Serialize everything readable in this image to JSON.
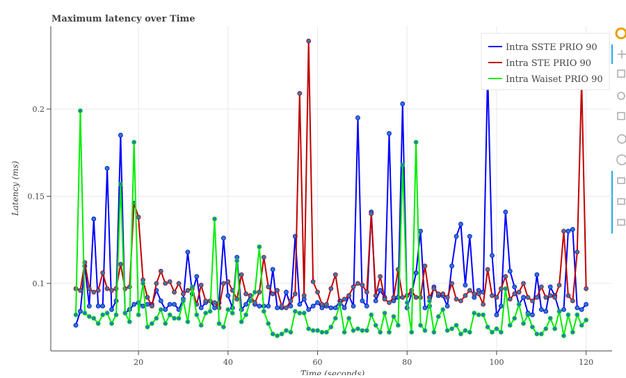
{
  "chart_data": {
    "type": "line",
    "title": "Maximum latency over Time",
    "x_label": "Time (seconds)",
    "y_label": "Latency (ms)",
    "xlim": [
      0.4,
      125.8
    ],
    "ylim": [
      0.0613,
      0.2474
    ],
    "xticks": [
      20,
      40,
      60,
      80,
      100,
      120
    ],
    "yticks": [
      0.1,
      0.15,
      0.2
    ],
    "grid": true,
    "legend": "top-right",
    "marker_color": "#2b7bb9",
    "x": [
      6,
      7,
      8,
      9,
      10,
      11,
      12,
      13,
      14,
      15,
      16,
      17,
      18,
      19,
      20,
      21,
      22,
      23,
      24,
      25,
      26,
      27,
      28,
      29,
      30,
      31,
      32,
      33,
      34,
      35,
      36,
      37,
      38,
      39,
      40,
      41,
      42,
      43,
      44,
      45,
      46,
      47,
      48,
      49,
      50,
      51,
      52,
      53,
      54,
      55,
      56,
      57,
      58,
      59,
      60,
      61,
      62,
      63,
      64,
      65,
      66,
      67,
      68,
      69,
      70,
      71,
      72,
      73,
      74,
      75,
      76,
      77,
      78,
      79,
      80,
      81,
      82,
      83,
      84,
      85,
      86,
      87,
      88,
      89,
      90,
      91,
      92,
      93,
      94,
      95,
      96,
      97,
      98,
      99,
      100,
      101,
      102,
      103,
      104,
      105,
      106,
      107,
      108,
      109,
      110,
      111,
      112,
      113,
      114,
      115,
      116,
      117,
      118,
      119,
      120
    ],
    "series": [
      {
        "name": "Intra SSTE PRIO 90",
        "color": "#0000ff",
        "values": [
          0.076,
          0.084,
          0.11,
          0.087,
          0.137,
          0.087,
          0.087,
          0.166,
          0.085,
          0.09,
          0.185,
          0.083,
          0.085,
          0.088,
          0.089,
          0.087,
          0.088,
          0.088,
          0.096,
          0.09,
          0.085,
          0.088,
          0.088,
          0.085,
          0.091,
          0.118,
          0.094,
          0.104,
          0.086,
          0.089,
          0.09,
          0.086,
          0.089,
          0.126,
          0.093,
          0.086,
          0.115,
          0.085,
          0.088,
          0.093,
          0.088,
          0.087,
          0.087,
          0.087,
          0.108,
          0.086,
          0.086,
          0.095,
          0.087,
          0.127,
          0.088,
          0.091,
          0.085,
          0.087,
          0.089,
          0.086,
          0.087,
          0.086,
          0.086,
          0.09,
          0.086,
          0.093,
          0.087,
          0.195,
          0.09,
          0.087,
          0.141,
          0.09,
          0.096,
          0.092,
          0.186,
          0.09,
          0.092,
          0.203,
          0.086,
          0.094,
          0.106,
          0.13,
          0.086,
          0.087,
          0.098,
          0.093,
          0.093,
          0.087,
          0.11,
          0.127,
          0.134,
          0.099,
          0.127,
          0.092,
          0.096,
          0.095,
          0.221,
          0.116,
          0.082,
          0.087,
          0.141,
          0.107,
          0.098,
          0.088,
          0.092,
          0.083,
          0.082,
          0.105,
          0.085,
          0.084,
          0.098,
          0.093,
          0.084,
          0.085,
          0.13,
          0.131,
          0.086,
          0.085,
          0.088
        ]
      },
      {
        "name": "Intra STE PRIO 90",
        "color": "#c00000",
        "values": [
          0.097,
          0.096,
          0.112,
          0.097,
          0.095,
          0.096,
          0.106,
          0.097,
          0.096,
          0.097,
          0.111,
          0.097,
          0.098,
          0.146,
          0.138,
          0.102,
          0.092,
          0.087,
          0.1,
          0.107,
          0.1,
          0.101,
          0.095,
          0.1,
          0.094,
          0.096,
          0.097,
          0.088,
          0.099,
          0.09,
          0.09,
          0.089,
          0.086,
          0.1,
          0.101,
          0.096,
          0.091,
          0.105,
          0.094,
          0.093,
          0.089,
          0.095,
          0.115,
          0.098,
          0.094,
          0.096,
          0.087,
          0.086,
          0.09,
          0.094,
          0.209,
          0.093,
          0.239,
          0.101,
          0.095,
          0.088,
          0.088,
          0.097,
          0.105,
          0.088,
          0.091,
          0.093,
          0.098,
          0.1,
          0.099,
          0.095,
          0.14,
          0.093,
          0.104,
          0.091,
          0.089,
          0.092,
          0.108,
          0.092,
          0.093,
          0.096,
          0.092,
          0.092,
          0.11,
          0.092,
          0.097,
          0.094,
          0.094,
          0.092,
          0.1,
          0.091,
          0.09,
          0.093,
          0.096,
          0.094,
          0.094,
          0.088,
          0.108,
          0.093,
          0.092,
          0.097,
          0.104,
          0.091,
          0.094,
          0.095,
          0.1,
          0.092,
          0.09,
          0.092,
          0.098,
          0.092,
          0.093,
          0.092,
          0.099,
          0.13,
          0.093,
          0.09,
          0.118,
          0.216,
          0.097
        ]
      },
      {
        "name": "Intra Waiset PRIO 90",
        "color": "#00ee00",
        "values": [
          0.082,
          0.199,
          0.083,
          0.081,
          0.08,
          0.077,
          0.082,
          0.083,
          0.077,
          0.082,
          0.157,
          0.083,
          0.078,
          0.181,
          0.082,
          0.1,
          0.075,
          0.077,
          0.08,
          0.085,
          0.077,
          0.082,
          0.08,
          0.08,
          0.09,
          0.078,
          0.098,
          0.082,
          0.076,
          0.083,
          0.084,
          0.137,
          0.077,
          0.075,
          0.085,
          0.083,
          0.113,
          0.078,
          0.082,
          0.09,
          0.095,
          0.121,
          0.084,
          0.077,
          0.071,
          0.07,
          0.071,
          0.073,
          0.072,
          0.084,
          0.083,
          0.083,
          0.074,
          0.073,
          0.073,
          0.072,
          0.072,
          0.075,
          0.08,
          0.088,
          0.072,
          0.08,
          0.073,
          0.074,
          0.073,
          0.073,
          0.082,
          0.076,
          0.072,
          0.083,
          0.072,
          0.081,
          0.076,
          0.168,
          0.089,
          0.072,
          0.181,
          0.076,
          0.073,
          0.09,
          0.072,
          0.081,
          0.085,
          0.073,
          0.074,
          0.076,
          0.071,
          0.073,
          0.072,
          0.083,
          0.082,
          0.082,
          0.075,
          0.072,
          0.074,
          0.072,
          0.097,
          0.076,
          0.08,
          0.088,
          0.077,
          0.082,
          0.075,
          0.071,
          0.071,
          0.074,
          0.08,
          0.074,
          0.084,
          0.07,
          0.082,
          0.072,
          0.082,
          0.076,
          0.079
        ]
      }
    ]
  }
}
